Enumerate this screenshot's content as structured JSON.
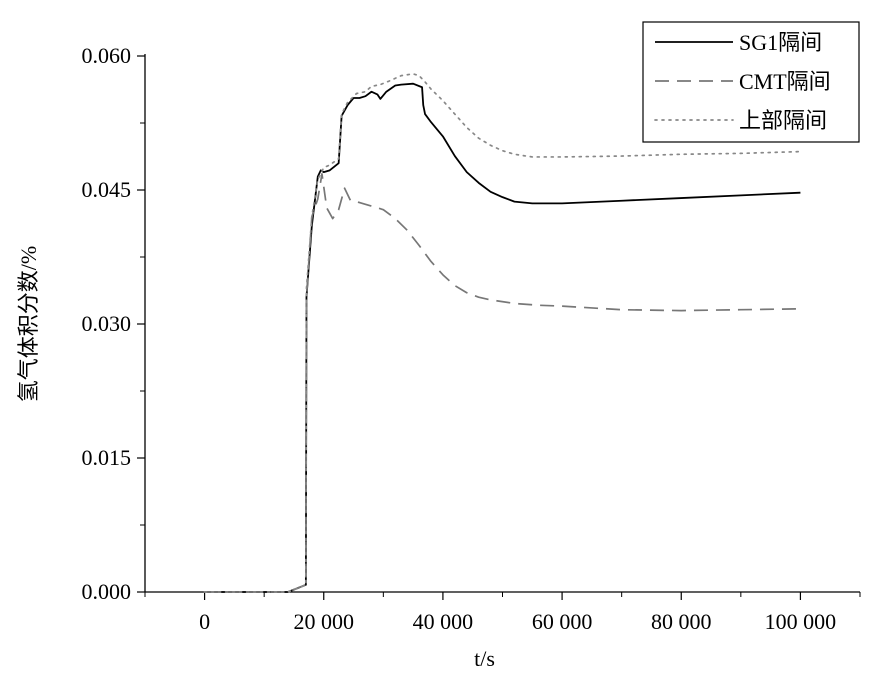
{
  "chart_data": {
    "type": "line",
    "title": "",
    "xlabel": "t/s",
    "ylabel": "氢气体积分数/%",
    "xlim": [
      -10000,
      110000
    ],
    "ylim": [
      0,
      0.06
    ],
    "xticks": [
      {
        "value": 0,
        "label": "0"
      },
      {
        "value": 20000,
        "label": "20 000"
      },
      {
        "value": 40000,
        "label": "40 000"
      },
      {
        "value": 60000,
        "label": "60 000"
      },
      {
        "value": 80000,
        "label": "80 000"
      },
      {
        "value": 100000,
        "label": "100 000"
      }
    ],
    "yticks": [
      {
        "value": 0,
        "label": "0.000"
      },
      {
        "value": 0.015,
        "label": "0.015"
      },
      {
        "value": 0.03,
        "label": "0.030"
      },
      {
        "value": 0.045,
        "label": "0.045"
      },
      {
        "value": 0.06,
        "label": "0.060"
      }
    ],
    "grid": false,
    "legend_position": "top-right",
    "series": [
      {
        "name": "SG1隔间",
        "style": "solid",
        "color": "#000000",
        "x": [
          0,
          14000,
          17000,
          17100,
          18000,
          19000,
          19500,
          20000,
          21000,
          22500,
          23000,
          24000,
          25000,
          26000,
          27000,
          28000,
          29000,
          29500,
          30500,
          32000,
          33000,
          35000,
          36500,
          36700,
          37000,
          38000,
          40000,
          42000,
          44000,
          46000,
          48000,
          50000,
          52000,
          55000,
          60000,
          70000,
          80000,
          90000,
          100000
        ],
        "y": [
          0,
          0,
          0.0008,
          0.033,
          0.041,
          0.0465,
          0.0472,
          0.047,
          0.0472,
          0.048,
          0.0533,
          0.0545,
          0.0553,
          0.0553,
          0.0555,
          0.056,
          0.0557,
          0.0552,
          0.056,
          0.0567,
          0.0568,
          0.0569,
          0.0565,
          0.0545,
          0.0535,
          0.0526,
          0.051,
          0.0488,
          0.047,
          0.0458,
          0.0448,
          0.0442,
          0.0437,
          0.0435,
          0.0435,
          0.0438,
          0.0441,
          0.0444,
          0.0447
        ]
      },
      {
        "name": "CMT隔间",
        "style": "dashed",
        "color": "#777777",
        "x": [
          0,
          14000,
          17000,
          17100,
          18000,
          19000,
          19700,
          20500,
          21500,
          22500,
          23500,
          24500,
          26000,
          28000,
          30000,
          32000,
          34000,
          36000,
          38000,
          40000,
          42000,
          44000,
          46000,
          48000,
          52000,
          56000,
          60000,
          70000,
          80000,
          90000,
          100000
        ],
        "y": [
          0,
          0,
          0.0008,
          0.033,
          0.042,
          0.044,
          0.0468,
          0.043,
          0.0418,
          0.0428,
          0.0452,
          0.0438,
          0.0436,
          0.0432,
          0.0428,
          0.0418,
          0.0405,
          0.0388,
          0.037,
          0.0355,
          0.0343,
          0.0335,
          0.033,
          0.0327,
          0.0323,
          0.0321,
          0.032,
          0.0316,
          0.0315,
          0.0316,
          0.0317
        ]
      },
      {
        "name": "上部隔间",
        "style": "dotted",
        "color": "#888888",
        "x": [
          0,
          14000,
          17000,
          17100,
          18000,
          19000,
          20000,
          21000,
          22500,
          23000,
          24000,
          25500,
          27000,
          28000,
          29500,
          31000,
          33000,
          35000,
          36000,
          37000,
          38000,
          40000,
          42000,
          44000,
          46000,
          48000,
          50000,
          52000,
          55000,
          60000,
          70000,
          80000,
          90000,
          100000
        ],
        "y": [
          0,
          0,
          0.0008,
          0.034,
          0.042,
          0.0462,
          0.0475,
          0.0478,
          0.0485,
          0.0535,
          0.0548,
          0.0558,
          0.056,
          0.0566,
          0.0568,
          0.0572,
          0.0578,
          0.058,
          0.0578,
          0.0571,
          0.0563,
          0.055,
          0.0535,
          0.052,
          0.0508,
          0.05,
          0.0494,
          0.049,
          0.0487,
          0.0487,
          0.0488,
          0.049,
          0.0491,
          0.0493
        ]
      }
    ]
  }
}
